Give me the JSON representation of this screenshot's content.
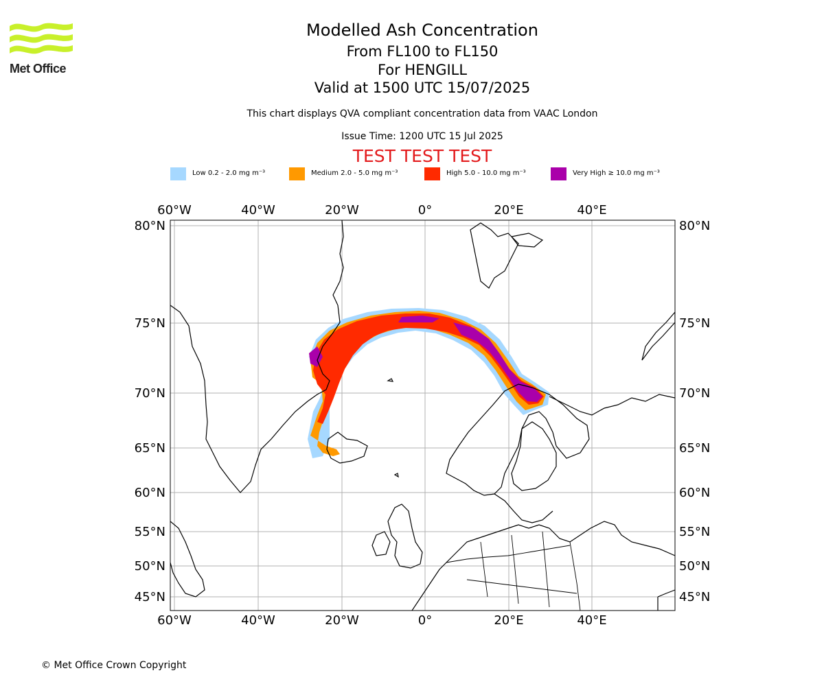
{
  "header": {
    "logo_text": "Met Office",
    "title": "Modelled Ash Concentration",
    "level_range": "From FL100 to FL150",
    "volcano": "For HENGILL",
    "valid_time": "Valid at 1500 UTC 15/07/2025",
    "description": "This chart displays QVA compliant concentration data from VAAC London",
    "issue_time": "Issue Time: 1200 UTC 15 Jul 2025",
    "test_banner": "TEST TEST TEST"
  },
  "legend": [
    {
      "label": "Low 0.2 - 2.0 mg m⁻³",
      "color": "#a6d8ff"
    },
    {
      "label": "Medium 2.0 - 5.0 mg m⁻³",
      "color": "#ff9900"
    },
    {
      "label": "High 5.0 - 10.0 mg m⁻³",
      "color": "#ff2a00"
    },
    {
      "label": "Very High ≥ 10.0 mg m⁻³",
      "color": "#aa00aa"
    }
  ],
  "map": {
    "lon_ticks": [
      "60°W",
      "40°W",
      "20°W",
      "0°",
      "20°E",
      "40°E"
    ],
    "lat_ticks": [
      "80°N",
      "75°N",
      "70°N",
      "65°N",
      "60°N",
      "55°N",
      "50°N",
      "45°N"
    ]
  },
  "footer": {
    "copyright": "© Met Office Crown Copyright"
  }
}
